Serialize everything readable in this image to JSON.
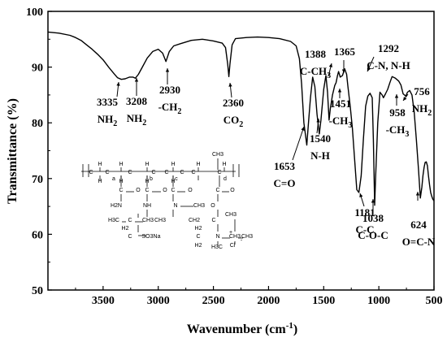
{
  "chart_data": {
    "type": "line",
    "xlabel": "Wavenumber (cm",
    "xlabel_sup": "-1",
    "xlabel_tail": ")",
    "ylabel": "Transmittance (%)",
    "xlim": [
      4000,
      500
    ],
    "ylim": [
      50,
      100
    ],
    "x_ticks": [
      3500,
      3000,
      2500,
      2000,
      1500,
      1000,
      500
    ],
    "y_ticks": [
      50,
      60,
      70,
      80,
      90,
      100
    ],
    "grid": false,
    "series": [
      {
        "x": [
          4000,
          3900,
          3800,
          3750,
          3700,
          3650,
          3600,
          3550,
          3500,
          3450,
          3400,
          3370,
          3335,
          3300,
          3260,
          3230,
          3208,
          3180,
          3150,
          3100,
          3050,
          3000,
          2960,
          2930,
          2900,
          2860,
          2800,
          2700,
          2600,
          2500,
          2420,
          2390,
          2370,
          2360,
          2350,
          2330,
          2300,
          2200,
          2100,
          2000,
          1900,
          1800,
          1750,
          1720,
          1700,
          1680,
          1653,
          1640,
          1620,
          1600,
          1580,
          1560,
          1540,
          1525,
          1500,
          1480,
          1465,
          1451,
          1440,
          1420,
          1400,
          1388,
          1375,
          1365,
          1350,
          1330,
          1310,
          1292,
          1280,
          1260,
          1240,
          1220,
          1200,
          1181,
          1160,
          1140,
          1120,
          1100,
          1080,
          1060,
          1050,
          1038,
          1030,
          1010,
          990,
          970,
          958,
          940,
          920,
          900,
          880,
          850,
          820,
          800,
          780,
          756,
          740,
          720,
          700,
          680,
          660,
          640,
          624,
          610,
          600,
          590,
          580,
          570,
          560,
          550,
          540,
          530,
          520,
          510,
          500
        ],
        "y": [
          96.3,
          96.1,
          95.7,
          95.3,
          94.8,
          94.0,
          93.2,
          92.3,
          91.3,
          90.0,
          88.8,
          88.1,
          87.8,
          87.9,
          88.2,
          88.2,
          88.0,
          88.7,
          89.8,
          91.6,
          92.8,
          93.2,
          92.5,
          91.0,
          92.8,
          93.8,
          94.2,
          94.8,
          95.0,
          94.7,
          94.3,
          93.5,
          90.5,
          88.3,
          90.5,
          94.0,
          95.1,
          95.3,
          95.4,
          95.3,
          95.1,
          94.6,
          93.8,
          91.5,
          87.0,
          80.0,
          76.0,
          79.5,
          84.5,
          88.2,
          86.5,
          81.5,
          78.0,
          80.5,
          86.0,
          88.5,
          85.5,
          80.5,
          82.5,
          85.0,
          86.7,
          87.2,
          88.5,
          89.2,
          88.2,
          88.5,
          89.7,
          88.7,
          86.5,
          83.0,
          79.0,
          73.5,
          68.0,
          67.5,
          70.5,
          77.0,
          83.0,
          84.8,
          85.3,
          84.5,
          77.0,
          65.2,
          70.0,
          80.0,
          85.5,
          85.0,
          84.5,
          85.2,
          86.0,
          87.2,
          88.3,
          88.0,
          87.5,
          86.8,
          85.2,
          84.8,
          85.5,
          85.8,
          85.0,
          82.0,
          77.0,
          71.5,
          66.5,
          68.5,
          70.5,
          72.0,
          72.9,
          73.0,
          72.3,
          70.5,
          68.8,
          67.5,
          66.8,
          66.3,
          66.0
        ]
      }
    ],
    "annotations": [
      {
        "lines": [
          "3335",
          "NH_2"
        ]
      },
      {
        "lines": [
          "3208",
          "NH_2"
        ]
      },
      {
        "lines": [
          "2930",
          "-CH_2"
        ]
      },
      {
        "lines": [
          "2360",
          "CO_2"
        ]
      },
      {
        "lines": [
          "1653",
          "C=O"
        ]
      },
      {
        "lines": [
          "1540",
          "N-H"
        ]
      },
      {
        "lines": [
          "1388",
          "C-CH_3"
        ]
      },
      {
        "lines": [
          "1365"
        ]
      },
      {
        "lines": [
          "1451",
          "-CH_3"
        ]
      },
      {
        "lines": [
          "1292",
          "C-N, N-H"
        ]
      },
      {
        "lines": [
          "958",
          "-CH_3"
        ]
      },
      {
        "lines": [
          "756",
          "NH_2"
        ]
      },
      {
        "lines": [
          "1181",
          "C-C"
        ]
      },
      {
        "lines": [
          "1038",
          "C-O-C"
        ]
      },
      {
        "lines": [
          "624",
          "O=C-N"
        ]
      }
    ]
  },
  "structure": {
    "labels": [
      "H",
      "H",
      "H",
      "H",
      "H",
      "H",
      "CH3",
      "C",
      "C",
      "C",
      "C",
      "C",
      "C",
      "C",
      "C",
      "a",
      "b",
      "c",
      "d",
      "H",
      "H",
      "H",
      "H",
      "C",
      "O",
      "C",
      "O",
      "C",
      "O",
      "C",
      "O",
      "H2N",
      "NH",
      "N",
      "CH3",
      "O",
      "H3C",
      "C",
      "CH3",
      "CH3",
      "CH2",
      "C",
      "SO3Na",
      "H2",
      "C",
      "CH3",
      "H2",
      "C",
      "N",
      "CH3",
      "CH3",
      "Cl",
      "H3C",
      "H2",
      "+",
      "-"
    ]
  }
}
